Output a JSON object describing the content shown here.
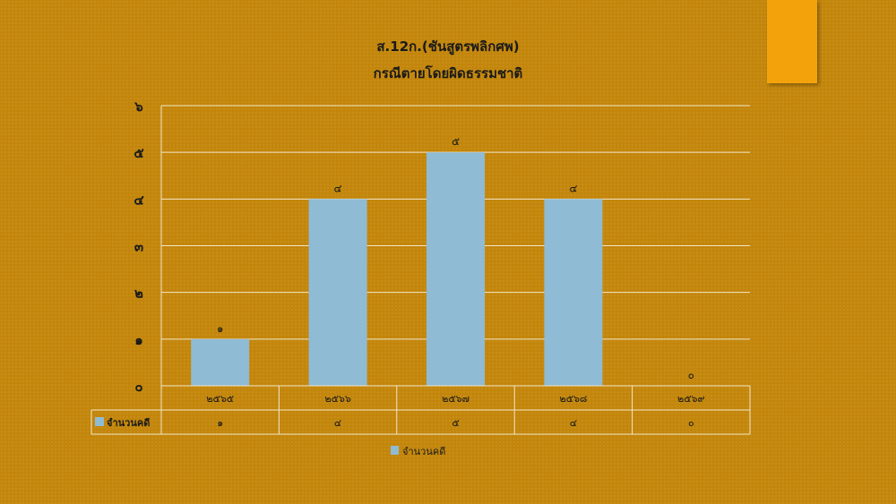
{
  "colors": {
    "background": "#c3860b",
    "accent": "#f4a20c",
    "bar": "#8fbbd4",
    "grid": "#f2e6c8"
  },
  "chart_data": {
    "type": "bar",
    "title": "ส.12ก.(ชันสูตรพลิกศพ)",
    "subtitle": "กรณีตายโดยผิดธรรมชาติ",
    "categories": [
      "๒๕๖๕",
      "๒๕๖๖",
      "๒๕๖๗",
      "๒๕๖๘",
      "๒๕๖๙"
    ],
    "series": [
      {
        "name": "จำนวนคดี",
        "values": [
          1,
          4,
          5,
          4,
          0
        ],
        "labels": [
          "๑",
          "๔",
          "๕",
          "๔",
          "๐"
        ]
      }
    ],
    "ylim": [
      0,
      6
    ],
    "yticks": [
      0,
      1,
      2,
      3,
      4,
      5,
      6
    ],
    "ytick_labels": [
      "๐",
      "๑",
      "๒",
      "๓",
      "๔",
      "๕",
      "๖"
    ],
    "grid": true,
    "data_table": true,
    "legend": "bottom"
  }
}
